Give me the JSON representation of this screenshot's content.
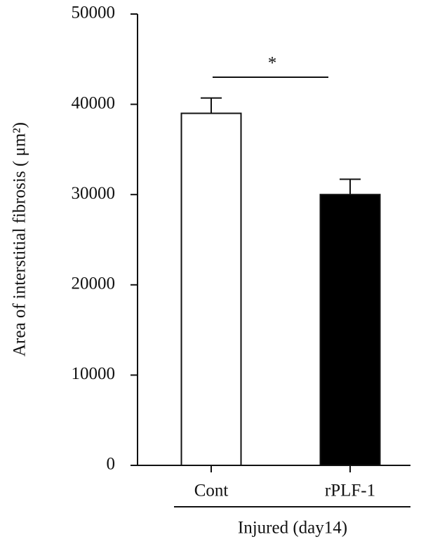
{
  "chart_data": {
    "type": "bar",
    "categories": [
      "Cont",
      "rPLF-1"
    ],
    "values": [
      39000,
      30000
    ],
    "errors": [
      1700,
      1700
    ],
    "colors": [
      "#ffffff",
      "#000000"
    ],
    "ylabel": "Area of interstitial fibrosis ( μm²)",
    "ylim": [
      0,
      50000
    ],
    "yticks": [
      0,
      10000,
      20000,
      30000,
      40000,
      50000
    ],
    "significance": "*",
    "group_label": "Injured (day14)"
  }
}
